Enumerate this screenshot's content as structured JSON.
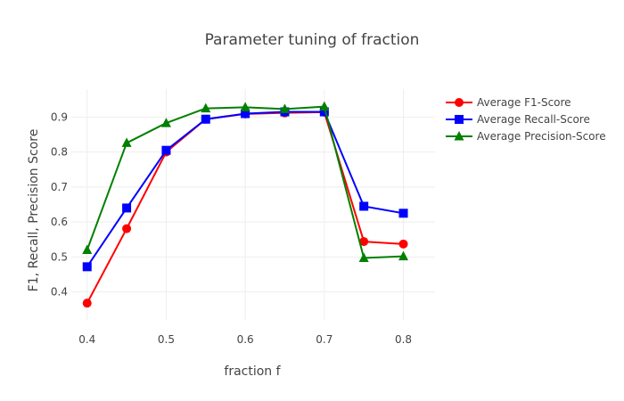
{
  "chart_data": {
    "type": "line",
    "title": "Parameter tuning of fraction",
    "xlabel": "fraction f",
    "ylabel": "F1, Recall, Precision Score",
    "x": [
      0.4,
      0.45,
      0.5,
      0.55,
      0.6,
      0.65,
      0.7,
      0.75,
      0.8
    ],
    "xticks": [
      "0.4",
      "0.5",
      "0.6",
      "0.7",
      "0.8"
    ],
    "xtick_values": [
      0.4,
      0.5,
      0.6,
      0.7,
      0.8
    ],
    "yticks": [
      "0.4",
      "0.5",
      "0.6",
      "0.7",
      "0.8",
      "0.9"
    ],
    "ytick_values": [
      0.4,
      0.5,
      0.6,
      0.7,
      0.8,
      0.9
    ],
    "xlim": [
      0.38,
      0.84
    ],
    "ylim": [
      0.32,
      0.98
    ],
    "grid": true,
    "legend_position": "top-right",
    "series": [
      {
        "name": "Average F1-Score",
        "color": "#ff0000",
        "marker": "circle",
        "values": [
          0.368,
          0.581,
          0.8,
          0.894,
          0.909,
          0.912,
          0.914,
          0.544,
          0.537
        ]
      },
      {
        "name": "Average Recall-Score",
        "color": "#0000ff",
        "marker": "square",
        "values": [
          0.472,
          0.64,
          0.805,
          0.894,
          0.91,
          0.915,
          0.915,
          0.645,
          0.625
        ]
      },
      {
        "name": "Average Precision-Score",
        "color": "#008000",
        "marker": "triangle",
        "values": [
          0.52,
          0.826,
          0.883,
          0.925,
          0.928,
          0.923,
          0.93,
          0.497,
          0.502
        ]
      }
    ]
  }
}
